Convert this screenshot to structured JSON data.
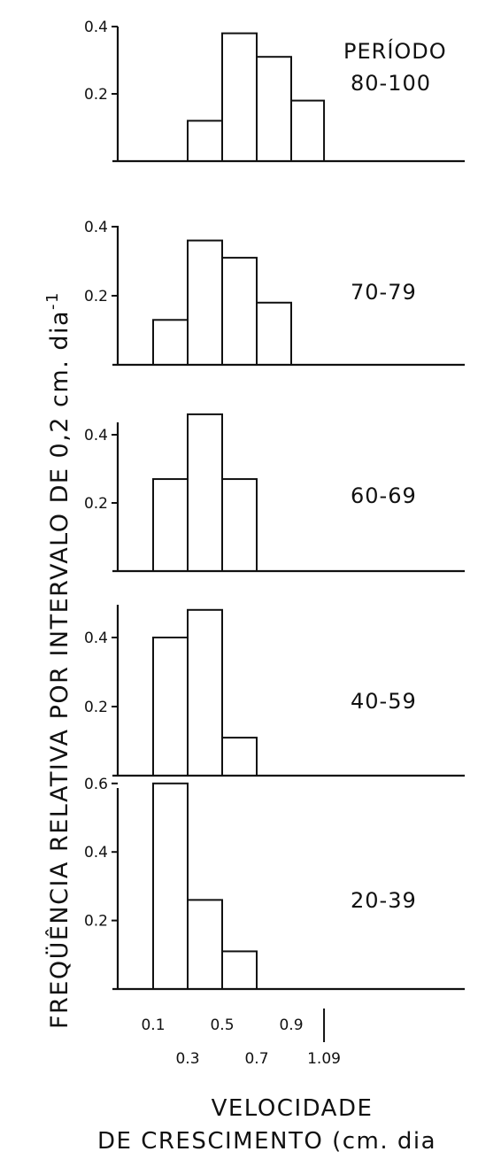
{
  "chart_data": [
    {
      "type": "bar",
      "title": "PERÍODO",
      "series": [
        {
          "name": "80-100"
        }
      ],
      "bins": [
        [
          0.3,
          0.5
        ],
        [
          0.5,
          0.7
        ],
        [
          0.7,
          0.9
        ],
        [
          0.9,
          1.09
        ]
      ],
      "values": [
        0.12,
        0.38,
        0.31,
        0.18
      ],
      "yticks": [
        0.2,
        0.4
      ],
      "ylim": [
        0,
        0.4
      ]
    },
    {
      "type": "bar",
      "series": [
        {
          "name": "70-79"
        }
      ],
      "bins": [
        [
          0.1,
          0.3
        ],
        [
          0.3,
          0.5
        ],
        [
          0.5,
          0.7
        ],
        [
          0.7,
          0.9
        ]
      ],
      "values": [
        0.13,
        0.36,
        0.31,
        0.18
      ],
      "yticks": [
        0.2,
        0.4
      ],
      "ylim": [
        0,
        0.4
      ]
    },
    {
      "type": "bar",
      "series": [
        {
          "name": "60-69"
        }
      ],
      "bins": [
        [
          0.1,
          0.3
        ],
        [
          0.3,
          0.5
        ],
        [
          0.5,
          0.7
        ]
      ],
      "values": [
        0.27,
        0.46,
        0.27
      ],
      "yticks": [
        0.2,
        0.4
      ],
      "ylim": [
        0,
        0.5
      ]
    },
    {
      "type": "bar",
      "series": [
        {
          "name": "40-59"
        }
      ],
      "bins": [
        [
          0.1,
          0.3
        ],
        [
          0.3,
          0.5
        ],
        [
          0.5,
          0.7
        ]
      ],
      "values": [
        0.4,
        0.48,
        0.11
      ],
      "yticks": [
        0.2,
        0.4
      ],
      "ylim": [
        0,
        0.5
      ]
    },
    {
      "type": "bar",
      "series": [
        {
          "name": "20-39"
        }
      ],
      "bins": [
        [
          0.1,
          0.3
        ],
        [
          0.3,
          0.5
        ],
        [
          0.5,
          0.7
        ]
      ],
      "values": [
        0.6,
        0.26,
        0.11
      ],
      "yticks": [
        0.2,
        0.4,
        0.6
      ],
      "ylim": [
        0,
        0.6
      ]
    }
  ],
  "x_ticks_upper": [
    "0.1",
    "0.5",
    "0.9"
  ],
  "x_ticks_lower": [
    "0.3",
    "0.7",
    "1.09"
  ],
  "xlabel_line1": "VELOCIDADE",
  "xlabel_line2": "DE CRESCIMENTO (cm. dia",
  "ylabel": "FREQÜÊNCIA RELATIVA POR INTERVALO DE 0,2 cm. dia",
  "ylabel_sup": "-1"
}
